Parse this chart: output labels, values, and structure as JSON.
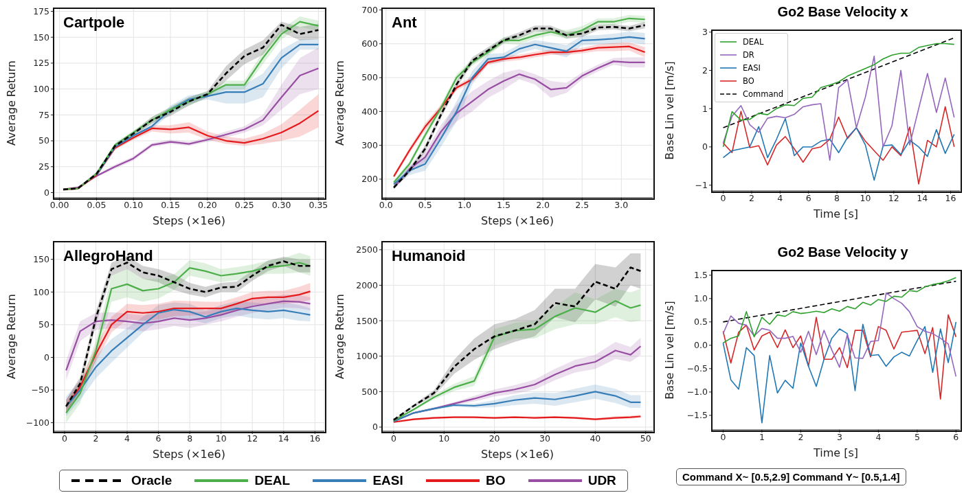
{
  "chart_data": [
    {
      "type": "line",
      "title": "Cartpole",
      "xlabel": "Steps (×1e6)",
      "ylabel": "Average Return",
      "grid": true,
      "legend": "bottom",
      "line_style": "solid",
      "xlim": [
        -0.008,
        0.358
      ],
      "ylim": [
        -5,
        178
      ],
      "xticks": [
        {
          "value": 0,
          "label": "0.00"
        },
        {
          "value": 0.05,
          "label": "0.05"
        },
        {
          "value": 0.1,
          "label": "0.10"
        },
        {
          "value": 0.15,
          "label": "0.15"
        },
        {
          "value": 0.2,
          "label": "0.20"
        },
        {
          "value": 0.25,
          "label": "0.25"
        },
        {
          "value": 0.3,
          "label": "0.30"
        },
        {
          "value": 0.35,
          "label": "0.35"
        }
      ],
      "yticks": [
        0,
        25,
        50,
        75,
        100,
        125,
        150,
        175
      ],
      "x": [
        0.005,
        0.025,
        0.05,
        0.075,
        0.1,
        0.125,
        0.15,
        0.175,
        0.2,
        0.225,
        0.25,
        0.275,
        0.3,
        0.325,
        0.35
      ],
      "series": [
        {
          "name": "Oracle",
          "color": "#000000",
          "line_style": "dashed",
          "values": [
            3,
            4,
            18,
            45,
            57,
            70,
            78,
            88,
            95,
            115,
            132,
            140,
            162,
            153,
            157
          ],
          "lower": [
            2,
            3,
            16,
            43,
            55,
            67,
            74,
            84,
            92,
            108,
            124,
            133,
            155,
            147,
            148
          ],
          "upper": [
            4,
            5,
            20,
            47,
            59,
            73,
            82,
            92,
            98,
            122,
            138,
            147,
            165,
            160,
            163
          ]
        },
        {
          "name": "DEAL",
          "color": "#4daf4a",
          "values": [
            3,
            4,
            18,
            46,
            58,
            70,
            80,
            88,
            95,
            104,
            104,
            130,
            153,
            165,
            161
          ],
          "lower": [
            2,
            3,
            16,
            44,
            56,
            67,
            76,
            84,
            92,
            100,
            100,
            124,
            148,
            160,
            156
          ],
          "upper": [
            4,
            5,
            20,
            48,
            60,
            73,
            83,
            92,
            98,
            108,
            108,
            136,
            158,
            170,
            166
          ]
        },
        {
          "name": "EASI",
          "color": "#377eb8",
          "values": [
            null,
            null,
            17,
            44,
            55,
            64,
            80,
            90,
            93,
            97,
            97,
            105,
            130,
            143,
            143
          ],
          "lower": [
            null,
            null,
            15,
            42,
            53,
            61,
            76,
            86,
            90,
            86,
            86,
            92,
            120,
            138,
            138
          ],
          "upper": [
            null,
            null,
            19,
            46,
            57,
            67,
            84,
            94,
            96,
            104,
            104,
            115,
            138,
            148,
            148
          ]
        },
        {
          "name": "BO",
          "color": "#e41a1c",
          "values": [
            3,
            4,
            17,
            43,
            53,
            62,
            61,
            63,
            55,
            50,
            48,
            52,
            58,
            67,
            79
          ],
          "lower": [
            2,
            3,
            15,
            41,
            51,
            59,
            57,
            58,
            51,
            47,
            45,
            47,
            50,
            54,
            63
          ],
          "upper": [
            4,
            5,
            19,
            45,
            55,
            65,
            65,
            68,
            59,
            54,
            52,
            57,
            66,
            80,
            95
          ]
        },
        {
          "name": "UDR",
          "color": "#984ea3",
          "values": [
            3,
            5,
            16,
            25,
            33,
            46,
            49,
            47,
            51,
            56,
            61,
            70,
            92,
            113,
            120
          ],
          "lower": [
            2,
            4,
            15,
            23,
            31,
            44,
            47,
            45,
            49,
            53,
            58,
            65,
            80,
            95,
            100
          ],
          "upper": [
            4,
            6,
            17,
            27,
            35,
            48,
            51,
            49,
            53,
            59,
            64,
            75,
            104,
            130,
            140
          ]
        }
      ]
    },
    {
      "type": "line",
      "title": "Ant",
      "xlabel": "Steps (×1e6)",
      "ylabel": "Average Return",
      "grid": true,
      "line_style": "solid",
      "xlim": [
        -0.05,
        3.4
      ],
      "ylim": [
        145,
        705
      ],
      "xticks": [
        {
          "value": 0,
          "label": "0.0"
        },
        {
          "value": 0.5,
          "label": "0.5"
        },
        {
          "value": 1,
          "label": "1.0"
        },
        {
          "value": 1.5,
          "label": "1.5"
        },
        {
          "value": 2,
          "label": "2.0"
        },
        {
          "value": 2.5,
          "label": "2.5"
        },
        {
          "value": 3,
          "label": "3.0"
        }
      ],
      "yticks": [
        200,
        300,
        400,
        500,
        600,
        700
      ],
      "x": [
        0.1,
        0.3,
        0.5,
        0.7,
        0.9,
        1.1,
        1.3,
        1.5,
        1.7,
        1.9,
        2.1,
        2.3,
        2.5,
        2.7,
        2.9,
        3.1,
        3.3
      ],
      "series": [
        {
          "color": "#000000",
          "line_style": "dashed",
          "values": [
            175,
            225,
            290,
            390,
            480,
            550,
            580,
            610,
            625,
            645,
            645,
            625,
            630,
            648,
            650,
            645,
            655
          ],
          "lower": [
            170,
            218,
            280,
            380,
            470,
            540,
            570,
            602,
            616,
            636,
            636,
            615,
            620,
            640,
            642,
            637,
            645
          ],
          "upper": [
            182,
            232,
            300,
            400,
            490,
            560,
            590,
            618,
            634,
            654,
            654,
            635,
            640,
            656,
            658,
            653,
            665
          ]
        },
        {
          "color": "#4daf4a",
          "values": [
            190,
            245,
            330,
            410,
            500,
            545,
            575,
            610,
            610,
            625,
            635,
            625,
            640,
            665,
            665,
            675,
            672
          ],
          "lower": [
            184,
            238,
            320,
            400,
            490,
            535,
            565,
            600,
            598,
            615,
            625,
            615,
            628,
            655,
            655,
            665,
            662
          ],
          "upper": [
            196,
            252,
            340,
            420,
            510,
            555,
            585,
            620,
            622,
            635,
            645,
            640,
            652,
            675,
            675,
            685,
            682
          ]
        },
        {
          "color": "#377eb8",
          "values": [
            185,
            225,
            245,
            320,
            400,
            500,
            555,
            560,
            585,
            598,
            588,
            578,
            610,
            612,
            615,
            620,
            615
          ],
          "lower": [
            178,
            212,
            225,
            295,
            370,
            480,
            540,
            548,
            572,
            585,
            572,
            560,
            596,
            598,
            600,
            604,
            598
          ],
          "upper": [
            192,
            238,
            265,
            345,
            430,
            520,
            570,
            572,
            598,
            611,
            604,
            596,
            624,
            626,
            630,
            636,
            632
          ]
        },
        {
          "color": "#e41a1c",
          "values": [
            208,
            285,
            355,
            410,
            470,
            495,
            545,
            555,
            560,
            568,
            575,
            575,
            580,
            588,
            590,
            592,
            575
          ],
          "lower": [
            202,
            277,
            345,
            400,
            462,
            487,
            537,
            547,
            552,
            560,
            567,
            567,
            572,
            578,
            578,
            580,
            560
          ],
          "upper": [
            214,
            293,
            365,
            420,
            478,
            503,
            553,
            563,
            568,
            576,
            583,
            583,
            588,
            598,
            602,
            604,
            590
          ]
        },
        {
          "color": "#984ea3",
          "values": [
            175,
            230,
            265,
            340,
            395,
            430,
            465,
            490,
            510,
            495,
            465,
            470,
            505,
            528,
            548,
            545,
            545
          ],
          "lower": [
            170,
            220,
            250,
            320,
            370,
            400,
            440,
            465,
            495,
            480,
            440,
            455,
            495,
            518,
            538,
            530,
            530
          ],
          "upper": [
            182,
            240,
            280,
            360,
            420,
            460,
            490,
            515,
            525,
            510,
            490,
            485,
            515,
            538,
            558,
            560,
            560
          ]
        }
      ]
    },
    {
      "type": "line",
      "title": "AllegroHand",
      "xlabel": "Steps (×1e6)",
      "ylabel": "Average Return",
      "grid": true,
      "line_style": "solid",
      "xlim": [
        -0.7,
        16.6
      ],
      "ylim": [
        -113,
        177
      ],
      "xticks": [
        0,
        2,
        4,
        6,
        8,
        10,
        12,
        14,
        16
      ],
      "yticks": [
        {
          "value": -100,
          "label": "−100"
        },
        {
          "value": -50,
          "label": "−50"
        },
        0,
        50,
        100,
        150
      ],
      "x": [
        0.1,
        1,
        2,
        3,
        4,
        5,
        6,
        7,
        8,
        9,
        10,
        11,
        12,
        13,
        14,
        15,
        15.7
      ],
      "series": [
        {
          "color": "#000000",
          "line_style": "dashed",
          "values": [
            -75,
            -40,
            60,
            135,
            145,
            130,
            125,
            115,
            105,
            100,
            107,
            108,
            125,
            140,
            147,
            140,
            140
          ],
          "lower": [
            -85,
            -50,
            50,
            125,
            135,
            120,
            115,
            103,
            96,
            92,
            100,
            100,
            117,
            132,
            140,
            130,
            130
          ],
          "upper": [
            -65,
            -30,
            70,
            145,
            155,
            140,
            135,
            127,
            114,
            108,
            114,
            116,
            133,
            148,
            154,
            150,
            150
          ]
        },
        {
          "color": "#4daf4a",
          "values": [
            -85,
            -55,
            10,
            105,
            112,
            102,
            105,
            115,
            137,
            132,
            125,
            128,
            132,
            138,
            140,
            145,
            140
          ],
          "lower": [
            -100,
            -70,
            -5,
            85,
            92,
            85,
            90,
            103,
            125,
            120,
            115,
            118,
            122,
            128,
            128,
            130,
            125
          ],
          "upper": [
            -70,
            -40,
            25,
            125,
            135,
            120,
            120,
            127,
            149,
            144,
            135,
            138,
            142,
            148,
            152,
            160,
            155
          ]
        },
        {
          "color": "#377eb8",
          "values": [
            -75,
            -50,
            -15,
            10,
            30,
            50,
            68,
            73,
            70,
            62,
            70,
            75,
            72,
            70,
            72,
            68,
            65
          ],
          "lower": [
            -90,
            -65,
            -32,
            -8,
            15,
            38,
            56,
            62,
            58,
            52,
            60,
            64,
            60,
            58,
            60,
            56,
            55
          ],
          "upper": [
            -60,
            -35,
            2,
            28,
            45,
            62,
            80,
            84,
            82,
            72,
            80,
            86,
            84,
            82,
            84,
            80,
            75
          ]
        },
        {
          "color": "#e41a1c",
          "values": [
            -75,
            -45,
            5,
            50,
            70,
            68,
            70,
            75,
            75,
            75,
            75,
            82,
            90,
            92,
            92,
            96,
            101
          ],
          "lower": [
            -85,
            -55,
            -7,
            38,
            58,
            56,
            58,
            63,
            64,
            65,
            65,
            72,
            80,
            82,
            82,
            84,
            88
          ],
          "upper": [
            -65,
            -35,
            17,
            62,
            82,
            80,
            82,
            87,
            86,
            85,
            85,
            92,
            100,
            102,
            102,
            108,
            114
          ]
        },
        {
          "color": "#984ea3",
          "values": [
            -20,
            40,
            55,
            57,
            55,
            52,
            55,
            60,
            57,
            60,
            65,
            72,
            78,
            82,
            86,
            85,
            82
          ],
          "lower": [
            -35,
            25,
            42,
            45,
            43,
            40,
            43,
            48,
            45,
            50,
            55,
            62,
            68,
            72,
            76,
            75,
            72
          ],
          "upper": [
            -5,
            55,
            68,
            69,
            67,
            64,
            67,
            72,
            69,
            70,
            75,
            82,
            88,
            92,
            96,
            95,
            92
          ]
        }
      ]
    },
    {
      "type": "line",
      "title": "Humanoid",
      "xlabel": "Steps (×1e6)",
      "ylabel": "Average Return",
      "grid": true,
      "line_style": "solid",
      "xlim": [
        -2.3,
        51.4
      ],
      "ylim": [
        -58,
        2614
      ],
      "xticks": [
        0,
        10,
        20,
        30,
        40,
        50
      ],
      "yticks": [
        0,
        500,
        1000,
        1500,
        2000,
        2500
      ],
      "x": [
        0,
        4,
        8,
        12,
        16,
        20,
        24,
        28,
        32,
        36,
        40,
        44,
        47,
        49
      ],
      "series": [
        {
          "color": "#000000",
          "line_style": "dashed",
          "values": [
            100,
            300,
            480,
            850,
            1100,
            1280,
            1360,
            1450,
            1750,
            1700,
            2050,
            1950,
            2250,
            2200
          ],
          "lower": [
            90,
            280,
            440,
            750,
            950,
            1100,
            1200,
            1280,
            1550,
            1480,
            1800,
            1700,
            2000,
            1950
          ],
          "upper": [
            110,
            320,
            520,
            950,
            1250,
            1450,
            1520,
            1650,
            1950,
            1950,
            2300,
            2250,
            2450,
            2450
          ]
        },
        {
          "color": "#4daf4a",
          "values": [
            90,
            250,
            420,
            560,
            650,
            1270,
            1360,
            1380,
            1560,
            1680,
            1620,
            1780,
            1680,
            1720
          ],
          "lower": [
            80,
            235,
            390,
            510,
            580,
            1150,
            1250,
            1250,
            1380,
            1450,
            1450,
            1550,
            1480,
            1500
          ],
          "upper": [
            100,
            265,
            450,
            610,
            720,
            1380,
            1470,
            1500,
            1700,
            1900,
            1800,
            1950,
            1900,
            1950
          ]
        },
        {
          "color": "#377eb8",
          "values": [
            80,
            200,
            260,
            310,
            300,
            330,
            380,
            410,
            390,
            440,
            500,
            440,
            350,
            350
          ],
          "lower": [
            70,
            190,
            245,
            290,
            270,
            280,
            310,
            330,
            300,
            350,
            400,
            340,
            270,
            270
          ],
          "upper": [
            90,
            210,
            275,
            330,
            330,
            380,
            450,
            490,
            480,
            540,
            600,
            540,
            450,
            450
          ]
        },
        {
          "color": "#e41a1c",
          "values": [
            70,
            110,
            130,
            140,
            140,
            130,
            140,
            130,
            140,
            130,
            110,
            130,
            140,
            150
          ],
          "lower": [
            60,
            95,
            115,
            125,
            120,
            115,
            125,
            120,
            125,
            115,
            95,
            115,
            120,
            130
          ],
          "upper": [
            80,
            125,
            145,
            155,
            150,
            145,
            155,
            150,
            155,
            145,
            125,
            155,
            160,
            175
          ]
        },
        {
          "color": "#984ea3",
          "values": [
            80,
            200,
            260,
            330,
            400,
            480,
            530,
            600,
            740,
            860,
            920,
            1080,
            1020,
            1140
          ],
          "lower": [
            70,
            190,
            245,
            310,
            360,
            430,
            470,
            530,
            660,
            770,
            820,
            960,
            920,
            1020
          ],
          "upper": [
            90,
            210,
            275,
            350,
            440,
            530,
            590,
            670,
            820,
            950,
            1020,
            1200,
            1130,
            1260
          ]
        }
      ]
    },
    {
      "type": "line",
      "title": "Go2 Base Velocity x",
      "xlabel": "Time [s]",
      "ylabel": "Base Lin vel [m/s]",
      "grid": false,
      "legend": "top left",
      "line_style": "solid",
      "xlim": [
        -0.8,
        16.65
      ],
      "ylim": [
        -1.15,
        3.05
      ],
      "xticks": [
        0,
        2,
        4,
        6,
        8,
        10,
        12,
        14,
        16
      ],
      "yticks": [
        {
          "value": -1,
          "label": "−1"
        },
        0,
        1,
        2,
        3
      ],
      "x": [
        0,
        0.62,
        1.25,
        1.87,
        2.5,
        3.12,
        3.75,
        4.37,
        5,
        5.62,
        6.25,
        6.87,
        7.5,
        8.12,
        8.75,
        9.37,
        10,
        10.62,
        11.25,
        11.87,
        12.5,
        13.12,
        13.75,
        14.37,
        15,
        15.62,
        16.25
      ],
      "series": [
        {
          "name": "DEAL",
          "color": "#2ca02c",
          "values": [
            0,
            0.92,
            0.7,
            0.72,
            0.88,
            0.84,
            1.0,
            1.1,
            1.08,
            1.27,
            1.3,
            1.55,
            1.62,
            1.7,
            1.85,
            1.95,
            2.05,
            2.15,
            2.3,
            2.4,
            2.45,
            2.45,
            2.6,
            2.65,
            2.7,
            2.7,
            2.68
          ]
        },
        {
          "name": "DR",
          "color": "#9467bd",
          "values": [
            0.1,
            0.8,
            1.08,
            0.58,
            0.38,
            0.75,
            0.8,
            0.76,
            0.85,
            1.05,
            1.1,
            1.13,
            -0.35,
            1.55,
            1.75,
            0.5,
            1.3,
            2.37,
            0.0,
            0.55,
            2.0,
            0.05,
            1.0,
            1.92,
            0.9,
            1.8,
            0.77
          ]
        },
        {
          "name": "EASI",
          "color": "#1f77b4",
          "values": [
            -0.28,
            -0.1,
            -0.05,
            0.0,
            0.53,
            -0.28,
            0.2,
            0.74,
            -0.23,
            0.0,
            0.0,
            0.15,
            0.2,
            -0.15,
            0.25,
            0.5,
            0.05,
            -0.87,
            0.03,
            0.05,
            -0.2,
            0.17,
            0.0,
            -0.25,
            0.45,
            -0.17,
            0.33
          ]
        },
        {
          "name": "BO",
          "color": "#d62728",
          "values": [
            0.1,
            -0.15,
            0.93,
            -0.02,
            0.03,
            -0.47,
            0.05,
            0.27,
            -0.05,
            -0.4,
            -0.05,
            0.0,
            0.2,
            0.78,
            0.22,
            0.5,
            0.15,
            -0.1,
            -0.35,
            0.0,
            -0.23,
            0.52,
            -0.97,
            0.17,
            0.0,
            1.05,
            0.0
          ]
        },
        {
          "name": "Command",
          "color": "#000000",
          "line_style": "dashed",
          "x": [
            0,
            16.25
          ],
          "values": [
            0.5,
            2.85
          ]
        }
      ]
    },
    {
      "type": "line",
      "title": "Go2 Base Velocity y",
      "xlabel": "Time [s]",
      "ylabel": "Base Lin vel [m/s]",
      "grid": false,
      "line_style": "solid",
      "xlim": [
        -0.29,
        6.1
      ],
      "ylim": [
        -1.81,
        1.6
      ],
      "xticks": [
        0,
        1,
        2,
        3,
        4,
        5,
        6
      ],
      "yticks": [
        {
          "value": -1.5,
          "label": "−1.5"
        },
        {
          "value": -1,
          "label": "−1.0"
        },
        {
          "value": -0.5,
          "label": "−0.5"
        },
        {
          "value": 0,
          "label": "0.0"
        },
        {
          "value": 0.5,
          "label": "0.5"
        },
        {
          "value": 1,
          "label": "1.0"
        },
        {
          "value": 1.5,
          "label": "1.5"
        }
      ],
      "x": [
        0,
        0.2,
        0.4,
        0.6,
        0.8,
        1,
        1.2,
        1.4,
        1.6,
        1.8,
        2,
        2.2,
        2.4,
        2.6,
        2.8,
        3,
        3.2,
        3.4,
        3.6,
        3.8,
        4,
        4.2,
        4.4,
        4.6,
        4.8,
        5,
        5.2,
        5.4,
        5.6,
        5.8,
        6
      ],
      "annotations": [
        "Command X~ [0.5,2.9]  Command Y~ [0.5,1.4]"
      ],
      "series": [
        {
          "color": "#2ca02c",
          "values": [
            0.05,
            0.15,
            0.2,
            0.72,
            0.18,
            0.6,
            0.45,
            0.65,
            0.62,
            0.72,
            0.68,
            0.7,
            0.73,
            0.7,
            0.78,
            0.73,
            0.83,
            0.78,
            0.92,
            0.86,
            0.98,
            0.94,
            1.05,
            1.03,
            1.17,
            1.15,
            1.25,
            1.3,
            1.33,
            1.38,
            1.45
          ]
        },
        {
          "color": "#9467bd",
          "values": [
            0.25,
            0.63,
            0.47,
            0.43,
            0.2,
            0.36,
            0.32,
            0.15,
            0.15,
            0.19,
            -0.15,
            0.3,
            -0.2,
            0.32,
            -0.1,
            -0.47,
            0.23,
            -0.27,
            -0.28,
            0.08,
            0.1,
            1.12,
            1.0,
            0.9,
            0.72,
            0.4,
            0.3,
            0.25,
            0.15,
            0.03,
            -0.67
          ]
        },
        {
          "color": "#1f77b4",
          "values": [
            0.05,
            -0.74,
            -0.94,
            -0.05,
            -0.22,
            -1.66,
            -0.22,
            -1.02,
            -0.75,
            -0.92,
            0.05,
            -0.45,
            -0.88,
            -0.3,
            0.15,
            0.35,
            0.25,
            -0.97,
            0.45,
            -0.22,
            -0.2,
            -0.45,
            -0.25,
            -0.15,
            -0.23,
            0.1,
            0.4,
            -0.58,
            0.35,
            -0.37,
            0.5
          ]
        },
        {
          "color": "#d62728",
          "values": [
            0.3,
            -0.38,
            0.28,
            0.43,
            -0.1,
            0.2,
            0.28,
            -0.05,
            0.33,
            -0.05,
            0.2,
            -0.45,
            0.6,
            -0.3,
            -0.3,
            -0.05,
            -0.48,
            0.32,
            0.32,
            -0.25,
            0.4,
            0.32,
            -0.08,
            0.28,
            0.3,
            0.32,
            -0.18,
            0.38,
            -1.15,
            0.65,
            0.18
          ]
        },
        {
          "color": "#000000",
          "line_style": "dashed",
          "x": [
            0,
            6
          ],
          "values": [
            0.5,
            1.37
          ]
        }
      ]
    }
  ]
}
